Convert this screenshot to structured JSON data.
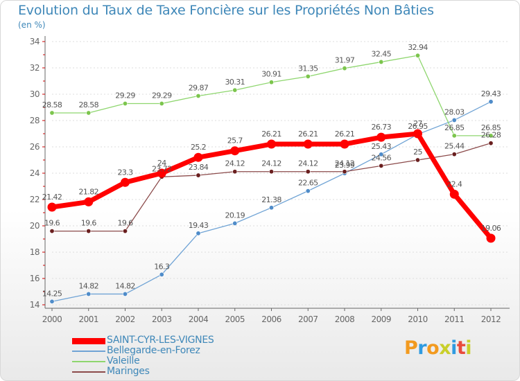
{
  "colors": {
    "title": "#3e87b8",
    "axis": "#666666",
    "tick_mark": "#cc0000",
    "grid": "#dddddd",
    "value_label": "#555555"
  },
  "chart_data": {
    "type": "line",
    "title": "Evolution du Taux de Taxe Foncière sur les Propriétés Non Bâties",
    "subtitle": "(en %)",
    "xlabel": "",
    "ylabel": "",
    "ylim": [
      14,
      34
    ],
    "yticks": [
      "14",
      "16",
      "18",
      "20",
      "22",
      "24",
      "26",
      "28",
      "30",
      "32",
      "34"
    ],
    "grid": true,
    "categories": [
      "2000",
      "2001",
      "2002",
      "2003",
      "2004",
      "2005",
      "2006",
      "2007",
      "2008",
      "2009",
      "2010",
      "2011",
      "2012"
    ],
    "series": [
      {
        "name": "SAINT-CYR-LES-VIGNES",
        "color": "#ff0000",
        "marker": "#ff0000",
        "emphasis": true,
        "values": [
          21.42,
          21.82,
          23.3,
          24.0,
          25.2,
          25.7,
          26.21,
          26.21,
          26.21,
          26.73,
          27.0,
          22.4,
          19.06
        ],
        "labels": [
          "21.42",
          "21.82",
          "23.3",
          "24",
          "25.2",
          "25.7",
          "26.21",
          "26.21",
          "26.21",
          "26.73",
          "27",
          "22.4",
          "19.06"
        ]
      },
      {
        "name": "Bellegarde-en-Forez",
        "color": "#6fa3d5",
        "marker": "#4f8cc9",
        "emphasis": false,
        "values": [
          14.25,
          14.82,
          14.82,
          16.3,
          19.43,
          20.19,
          21.38,
          22.65,
          23.99,
          25.43,
          26.95,
          28.03,
          29.43
        ],
        "labels": [
          "14.25",
          "14.82",
          "14.82",
          "16.3",
          "19.43",
          "20.19",
          "21.38",
          "22.65",
          "23.99",
          "25.43",
          "26.95",
          "28.03",
          "29.43"
        ]
      },
      {
        "name": "Valeille",
        "color": "#8ed66e",
        "marker": "#7cc54d",
        "emphasis": false,
        "values": [
          28.58,
          28.58,
          29.29,
          29.29,
          29.87,
          30.31,
          30.91,
          31.35,
          31.97,
          32.45,
          32.94,
          26.85,
          26.85
        ],
        "labels": [
          "28.58",
          "28.58",
          "29.29",
          "29.29",
          "29.87",
          "30.31",
          "30.91",
          "31.35",
          "31.97",
          "32.45",
          "32.94",
          "26.85",
          "26.85"
        ]
      },
      {
        "name": "Maringes",
        "color": "#8b4a4a",
        "marker": "#6a1f1f",
        "emphasis": false,
        "values": [
          19.6,
          19.6,
          19.6,
          23.72,
          23.84,
          24.12,
          24.12,
          24.12,
          24.12,
          24.56,
          25.0,
          25.44,
          26.28
        ],
        "labels": [
          "19.6",
          "19.6",
          "19.6",
          "23.72",
          "23.84",
          "24.12",
          "24.12",
          "24.12",
          "24.12",
          "24.56",
          "25",
          "25.44",
          "26.28"
        ]
      }
    ]
  },
  "logo": {
    "text": "Proxiti",
    "letters": [
      {
        "char": "P",
        "color": "#f29a1f"
      },
      {
        "char": "r",
        "color": "#2f9be0"
      },
      {
        "char": "o",
        "color": "#f29a1f"
      },
      {
        "char": "x",
        "color": "#c9cf2a"
      },
      {
        "char": "i",
        "color": "#2f9be0"
      },
      {
        "char": "t",
        "color": "#e94b3c"
      },
      {
        "char": "i",
        "color": "#c9cf2a"
      }
    ]
  }
}
